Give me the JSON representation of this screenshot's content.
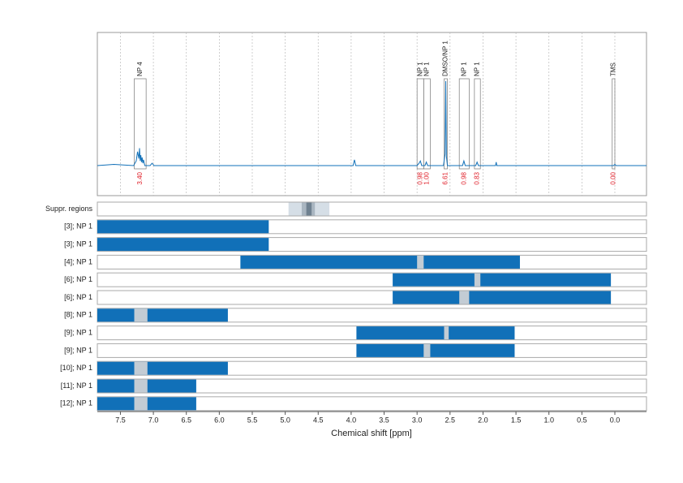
{
  "chart_data": {
    "type": "nmr",
    "xlabel": "Chemical shift [ppm]",
    "xlim": [
      7.85,
      -0.48
    ],
    "xticks": [
      7.5,
      {
        "value": 7,
        "label": "7.0"
      },
      6.5,
      {
        "value": 6,
        "label": "6.0"
      },
      5.5,
      {
        "value": 5,
        "label": "5.0"
      },
      4.5,
      {
        "value": 4,
        "label": "4.0"
      },
      3.5,
      {
        "value": 3,
        "label": "3.0"
      },
      2.5,
      {
        "value": 2,
        "label": "2.0"
      },
      1.5,
      {
        "value": 1,
        "label": "1.0"
      },
      0.5,
      {
        "value": 0,
        "label": "0.0"
      }
    ],
    "grid": true,
    "spectrum": {
      "color": "#1170b8",
      "ylim": [
        -26,
        115
      ],
      "x": [
        7.85,
        7.6,
        7.3,
        7.26,
        7.24,
        7.22,
        7.21,
        7.2,
        7.19,
        7.18,
        7.17,
        7.16,
        7.15,
        7.13,
        7.05,
        7.02,
        6.99,
        6.5,
        5.0,
        3.97,
        3.95,
        3.93,
        3.0,
        2.97,
        2.95,
        2.93,
        2.88,
        2.86,
        2.84,
        2.6,
        2.575,
        2.565,
        2.555,
        2.54,
        2.31,
        2.29,
        2.27,
        2.11,
        2.09,
        2.07,
        1.81,
        1.8,
        1.79,
        1.0,
        0.02,
        0.0,
        -0.02,
        -0.48
      ],
      "y": [
        0,
        1,
        0,
        4,
        12,
        6,
        15,
        4,
        9,
        3,
        7,
        2,
        5,
        0,
        0,
        2,
        0,
        0,
        0,
        0,
        5,
        0,
        0,
        2,
        4,
        0,
        0,
        3,
        0,
        0,
        10,
        73,
        8,
        0,
        0,
        4,
        0,
        0,
        3,
        0,
        0,
        3,
        0,
        0,
        0,
        1,
        0,
        0
      ]
    },
    "peaks": {
      "labels": [
        "NP 4",
        "NP 1",
        "NP 1",
        "DMSO/NP 1",
        "NP 1",
        "NP 1",
        "TMS"
      ],
      "ranges": [
        [
          7.29,
          7.11
        ],
        [
          3.0,
          2.9
        ],
        [
          2.9,
          2.8
        ],
        [
          2.59,
          2.54
        ],
        [
          2.36,
          2.21
        ],
        [
          2.13,
          2.04
        ],
        [
          0.04,
          0.0
        ]
      ],
      "values": [
        3.4,
        0.98,
        1,
        6.61,
        0.98,
        0.83,
        0
      ],
      "value_labels": [
        "3.40",
        "0.98",
        "1.00",
        "6.61",
        "0.98",
        "0.83",
        "0.00"
      ]
    },
    "suppression": {
      "label": "Suppr. regions",
      "ranges": [
        [
          4.95,
          4.33
        ],
        [
          4.75,
          4.55
        ],
        [
          4.68,
          4.6
        ]
      ],
      "colors": [
        "#d5dee6",
        "#a9b6c1",
        "#6f8190"
      ]
    },
    "bar_color": "#1170b8",
    "gap_color": "#c3ccd4",
    "rows": [
      {
        "name": "[3]; NP 1",
        "range": [
          7.85,
          5.25
        ]
      },
      {
        "name": "[3]; NP 1",
        "range": [
          7.85,
          5.25
        ]
      },
      {
        "name": "[4]; NP 1",
        "range": [
          5.68,
          1.44
        ],
        "gap": [
          3.0,
          2.9
        ]
      },
      {
        "name": "[6]; NP 1",
        "range": [
          3.37,
          0.06
        ],
        "gap": [
          2.13,
          2.04
        ]
      },
      {
        "name": "[6]; NP 1",
        "range": [
          3.37,
          0.06
        ],
        "gap": [
          2.36,
          2.21
        ]
      },
      {
        "name": "[8]; NP 1",
        "range": [
          7.85,
          5.87
        ],
        "gap": [
          7.29,
          7.09
        ]
      },
      {
        "name": "[9]; NP 1",
        "range": [
          3.92,
          1.52
        ],
        "gap": [
          2.59,
          2.52
        ]
      },
      {
        "name": "[9]; NP 1",
        "range": [
          3.92,
          1.52
        ],
        "gap": [
          2.9,
          2.8
        ]
      },
      {
        "name": "[10]; NP 1",
        "range": [
          7.85,
          5.87
        ],
        "gap": [
          7.29,
          7.09
        ]
      },
      {
        "name": "[11]; NP 1",
        "range": [
          7.85,
          6.35
        ],
        "gap": [
          7.29,
          7.09
        ]
      },
      {
        "name": "[12]; NP 1",
        "range": [
          7.85,
          6.35
        ],
        "gap": [
          7.29,
          7.09
        ]
      }
    ]
  }
}
